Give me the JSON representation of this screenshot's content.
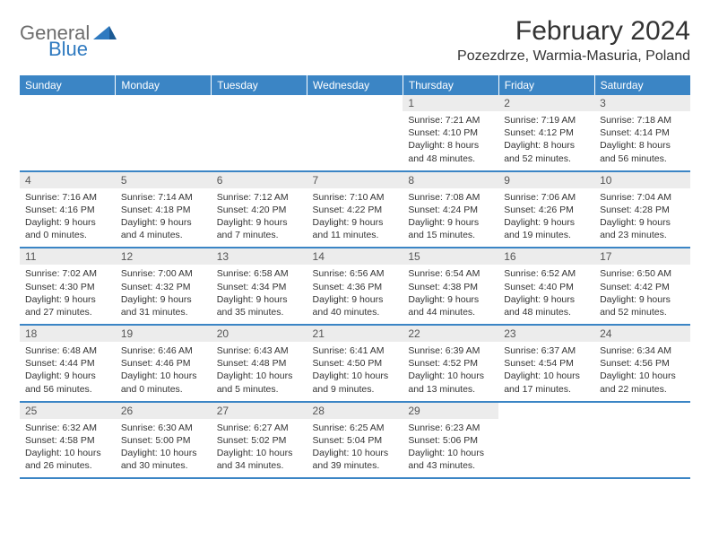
{
  "logo": {
    "text1": "General",
    "text2": "Blue"
  },
  "title": "February 2024",
  "location": "Pozezdrze, Warmia-Masuria, Poland",
  "colors": {
    "headerBg": "#3b85c5",
    "headerText": "#ffffff",
    "dayNumBg": "#ececec",
    "borderColor": "#3b85c5",
    "logoGray": "#6d6d6d",
    "logoBlue": "#2f7ac0"
  },
  "dayNames": [
    "Sunday",
    "Monday",
    "Tuesday",
    "Wednesday",
    "Thursday",
    "Friday",
    "Saturday"
  ],
  "weeks": [
    [
      {
        "empty": true
      },
      {
        "empty": true
      },
      {
        "empty": true
      },
      {
        "empty": true
      },
      {
        "num": "1",
        "sunrise": "7:21 AM",
        "sunset": "4:10 PM",
        "daylight": "8 hours and 48 minutes."
      },
      {
        "num": "2",
        "sunrise": "7:19 AM",
        "sunset": "4:12 PM",
        "daylight": "8 hours and 52 minutes."
      },
      {
        "num": "3",
        "sunrise": "7:18 AM",
        "sunset": "4:14 PM",
        "daylight": "8 hours and 56 minutes."
      }
    ],
    [
      {
        "num": "4",
        "sunrise": "7:16 AM",
        "sunset": "4:16 PM",
        "daylight": "9 hours and 0 minutes."
      },
      {
        "num": "5",
        "sunrise": "7:14 AM",
        "sunset": "4:18 PM",
        "daylight": "9 hours and 4 minutes."
      },
      {
        "num": "6",
        "sunrise": "7:12 AM",
        "sunset": "4:20 PM",
        "daylight": "9 hours and 7 minutes."
      },
      {
        "num": "7",
        "sunrise": "7:10 AM",
        "sunset": "4:22 PM",
        "daylight": "9 hours and 11 minutes."
      },
      {
        "num": "8",
        "sunrise": "7:08 AM",
        "sunset": "4:24 PM",
        "daylight": "9 hours and 15 minutes."
      },
      {
        "num": "9",
        "sunrise": "7:06 AM",
        "sunset": "4:26 PM",
        "daylight": "9 hours and 19 minutes."
      },
      {
        "num": "10",
        "sunrise": "7:04 AM",
        "sunset": "4:28 PM",
        "daylight": "9 hours and 23 minutes."
      }
    ],
    [
      {
        "num": "11",
        "sunrise": "7:02 AM",
        "sunset": "4:30 PM",
        "daylight": "9 hours and 27 minutes."
      },
      {
        "num": "12",
        "sunrise": "7:00 AM",
        "sunset": "4:32 PM",
        "daylight": "9 hours and 31 minutes."
      },
      {
        "num": "13",
        "sunrise": "6:58 AM",
        "sunset": "4:34 PM",
        "daylight": "9 hours and 35 minutes."
      },
      {
        "num": "14",
        "sunrise": "6:56 AM",
        "sunset": "4:36 PM",
        "daylight": "9 hours and 40 minutes."
      },
      {
        "num": "15",
        "sunrise": "6:54 AM",
        "sunset": "4:38 PM",
        "daylight": "9 hours and 44 minutes."
      },
      {
        "num": "16",
        "sunrise": "6:52 AM",
        "sunset": "4:40 PM",
        "daylight": "9 hours and 48 minutes."
      },
      {
        "num": "17",
        "sunrise": "6:50 AM",
        "sunset": "4:42 PM",
        "daylight": "9 hours and 52 minutes."
      }
    ],
    [
      {
        "num": "18",
        "sunrise": "6:48 AM",
        "sunset": "4:44 PM",
        "daylight": "9 hours and 56 minutes."
      },
      {
        "num": "19",
        "sunrise": "6:46 AM",
        "sunset": "4:46 PM",
        "daylight": "10 hours and 0 minutes."
      },
      {
        "num": "20",
        "sunrise": "6:43 AM",
        "sunset": "4:48 PM",
        "daylight": "10 hours and 5 minutes."
      },
      {
        "num": "21",
        "sunrise": "6:41 AM",
        "sunset": "4:50 PM",
        "daylight": "10 hours and 9 minutes."
      },
      {
        "num": "22",
        "sunrise": "6:39 AM",
        "sunset": "4:52 PM",
        "daylight": "10 hours and 13 minutes."
      },
      {
        "num": "23",
        "sunrise": "6:37 AM",
        "sunset": "4:54 PM",
        "daylight": "10 hours and 17 minutes."
      },
      {
        "num": "24",
        "sunrise": "6:34 AM",
        "sunset": "4:56 PM",
        "daylight": "10 hours and 22 minutes."
      }
    ],
    [
      {
        "num": "25",
        "sunrise": "6:32 AM",
        "sunset": "4:58 PM",
        "daylight": "10 hours and 26 minutes."
      },
      {
        "num": "26",
        "sunrise": "6:30 AM",
        "sunset": "5:00 PM",
        "daylight": "10 hours and 30 minutes."
      },
      {
        "num": "27",
        "sunrise": "6:27 AM",
        "sunset": "5:02 PM",
        "daylight": "10 hours and 34 minutes."
      },
      {
        "num": "28",
        "sunrise": "6:25 AM",
        "sunset": "5:04 PM",
        "daylight": "10 hours and 39 minutes."
      },
      {
        "num": "29",
        "sunrise": "6:23 AM",
        "sunset": "5:06 PM",
        "daylight": "10 hours and 43 minutes."
      },
      {
        "empty": true
      },
      {
        "empty": true
      }
    ]
  ],
  "labels": {
    "sunrise": "Sunrise:",
    "sunset": "Sunset:",
    "daylight": "Daylight:"
  }
}
